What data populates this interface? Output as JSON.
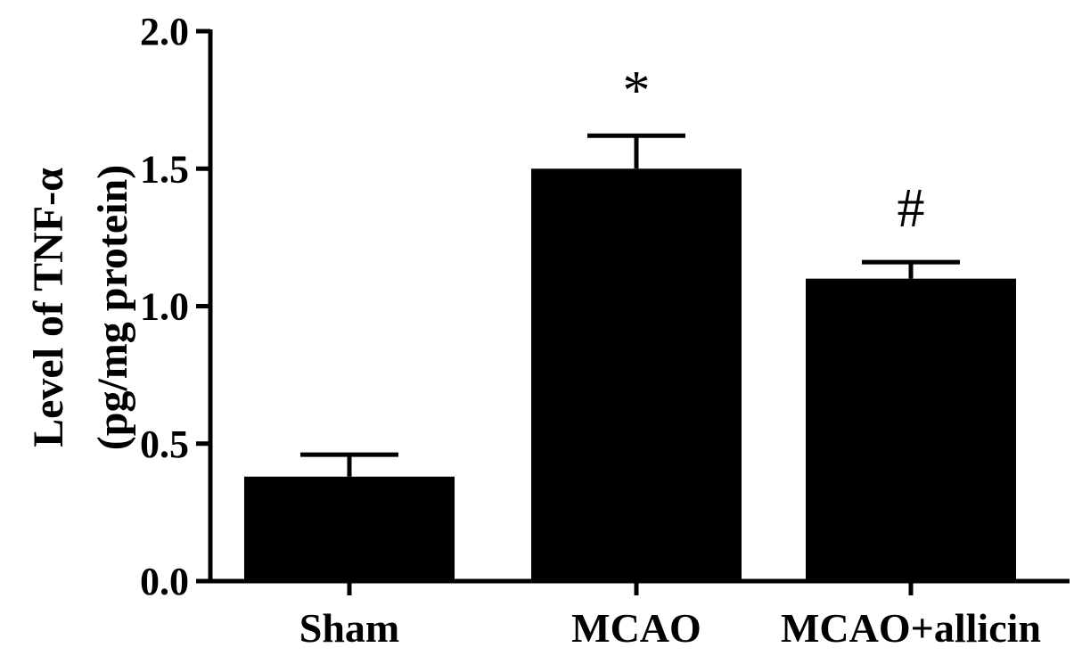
{
  "chart_data": {
    "type": "bar",
    "categories": [
      "Sham",
      "MCAO",
      "MCAO+allicin"
    ],
    "values": [
      0.38,
      1.5,
      1.1
    ],
    "error_upper": [
      0.46,
      1.62,
      1.16
    ],
    "annotations": [
      "",
      "*",
      "#"
    ],
    "ylabel_line1": "Level of TNF-α",
    "ylabel_line2": "(pg/mg protein)",
    "ylim": [
      0,
      2.0
    ],
    "yticks": [
      0.0,
      0.5,
      1.0,
      1.5,
      2.0
    ],
    "ytick_labels": [
      "0.0",
      "0.5",
      "1.0",
      "1.5",
      "2.0"
    ],
    "bar_color": "#000000",
    "grid": false,
    "legend": "none"
  }
}
